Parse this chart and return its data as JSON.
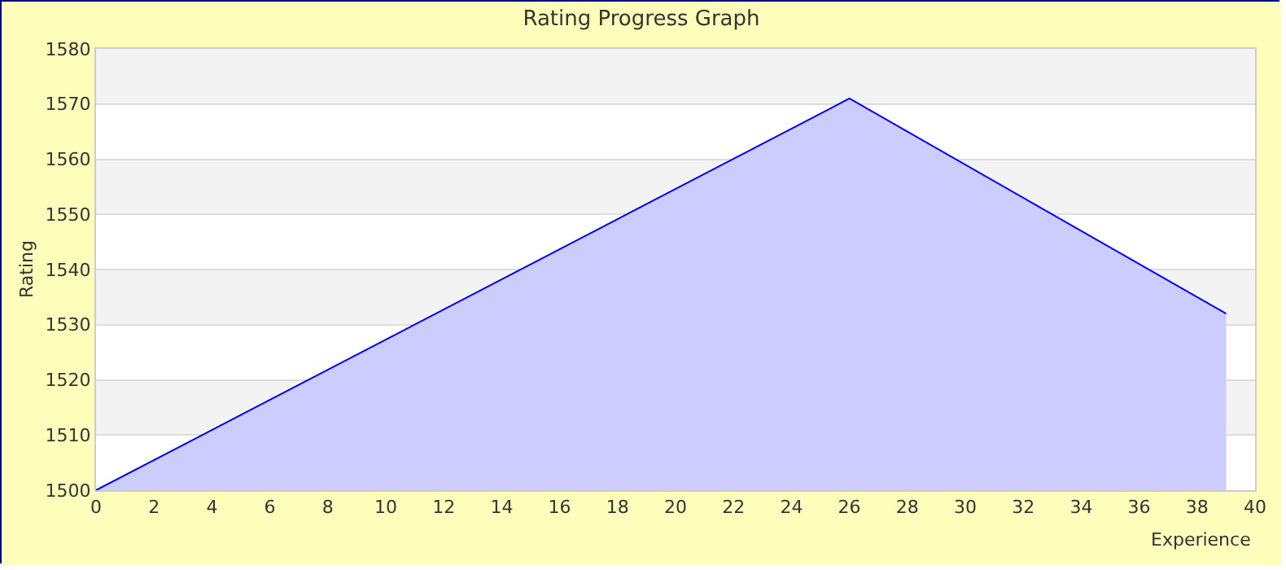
{
  "chart_data": {
    "type": "area",
    "title": "Rating Progress Graph",
    "xlabel": "Experience",
    "ylabel": "Rating",
    "x": [
      0,
      26,
      39
    ],
    "series": [
      {
        "color": "#0000ff",
        "values": [
          1500,
          1571,
          1532
        ]
      }
    ],
    "xlim": [
      0,
      40
    ],
    "xticks": [
      0,
      2,
      4,
      6,
      8,
      10,
      12,
      14,
      16,
      18,
      20,
      22,
      24,
      26,
      28,
      30,
      32,
      34,
      36,
      38,
      40
    ],
    "ylim": [
      1500,
      1580
    ],
    "yticks": [
      1500,
      1510,
      1520,
      1530,
      1540,
      1550,
      1560,
      1570,
      1580
    ],
    "grid": "y"
  }
}
